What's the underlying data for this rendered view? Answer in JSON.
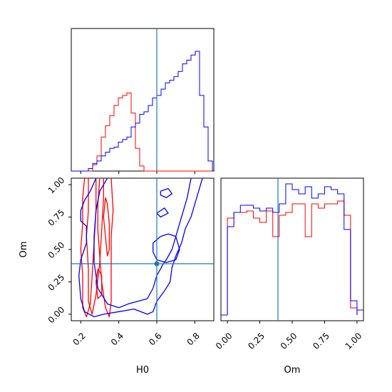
{
  "chart_data": [
    {
      "type": "histogram",
      "panel": "H0 marginal",
      "xlim": [
        0.15,
        0.9
      ],
      "truth": 0.6,
      "truth_color": "#1f77b4",
      "bins": [
        0.15,
        0.1725,
        0.195,
        0.2175,
        0.24,
        0.2625,
        0.285,
        0.3075,
        0.33,
        0.3525,
        0.375,
        0.3975,
        0.42,
        0.4425,
        0.465,
        0.4875,
        0.51,
        0.5325,
        0.555,
        0.5775,
        0.6,
        0.6225,
        0.645,
        0.6675,
        0.69,
        0.7125,
        0.735,
        0.7575,
        0.78,
        0.8025,
        0.825,
        0.8475,
        0.87,
        0.8925
      ],
      "series": [
        {
          "color": "#ff0000",
          "values": [
            0,
            0,
            0,
            0,
            0,
            0.05,
            0.12,
            0.27,
            0.36,
            0.44,
            0.52,
            0.58,
            0.6,
            0.62,
            0.46,
            0.18,
            0.04,
            0,
            0,
            0,
            0,
            0,
            0,
            0,
            0,
            0,
            0,
            0,
            0,
            0,
            0,
            0,
            0
          ]
        },
        {
          "color": "#0000ff",
          "values": [
            0,
            0,
            0,
            0,
            0.02,
            0.06,
            0.08,
            0.12,
            0.15,
            0.18,
            0.19,
            0.23,
            0.25,
            0.27,
            0.35,
            0.38,
            0.45,
            0.47,
            0.52,
            0.58,
            0.6,
            0.65,
            0.7,
            0.72,
            0.75,
            0.79,
            0.85,
            0.88,
            0.92,
            0.95,
            0.6,
            0.35,
            0.08
          ]
        }
      ]
    },
    {
      "type": "contour",
      "panel": "H0 vs Om",
      "xlabel": "H0",
      "ylabel": "Om",
      "xlim": [
        0.15,
        0.9
      ],
      "ylim": [
        -0.05,
        1.05
      ],
      "x_ticks": [
        "0.2",
        "0.4",
        "0.6",
        "0.8"
      ],
      "y_ticks": [
        "0.00",
        "0.25",
        "0.50",
        "0.75",
        "1.00"
      ],
      "truth": [
        0.6,
        0.39
      ],
      "truth_color": "#1f77b4",
      "series": [
        {
          "color": "#ff0000",
          "contours": [
            [
              [
                0.22,
                1.05
              ],
              [
                0.21,
                0.9
              ],
              [
                0.21,
                0.7
              ],
              [
                0.2,
                0.5
              ],
              [
                0.21,
                0.3
              ],
              [
                0.21,
                0.05
              ],
              [
                0.23,
                -0.02
              ],
              [
                0.25,
                0.08
              ],
              [
                0.26,
                0.3
              ],
              [
                0.27,
                0.55
              ],
              [
                0.28,
                0.8
              ],
              [
                0.28,
                1.05
              ]
            ],
            [
              [
                0.24,
                1.05
              ],
              [
                0.24,
                0.8
              ],
              [
                0.23,
                0.6
              ],
              [
                0.24,
                0.35
              ],
              [
                0.24,
                0.1
              ],
              [
                0.26,
                0.0
              ],
              [
                0.28,
                0.15
              ],
              [
                0.3,
                0.4
              ],
              [
                0.31,
                0.65
              ],
              [
                0.32,
                0.9
              ],
              [
                0.32,
                1.05
              ]
            ],
            [
              [
                0.3,
                1.05
              ],
              [
                0.29,
                0.85
              ],
              [
                0.29,
                0.65
              ],
              [
                0.3,
                0.45
              ],
              [
                0.31,
                0.25
              ],
              [
                0.33,
                0.05
              ],
              [
                0.35,
                -0.02
              ],
              [
                0.36,
                0.1
              ],
              [
                0.36,
                0.35
              ],
              [
                0.36,
                0.6
              ],
              [
                0.37,
                0.8
              ],
              [
                0.36,
                1.05
              ]
            ],
            [
              [
                0.33,
                0.9
              ],
              [
                0.32,
                0.75
              ],
              [
                0.33,
                0.6
              ],
              [
                0.34,
                0.45
              ],
              [
                0.35,
                0.5
              ],
              [
                0.35,
                0.7
              ],
              [
                0.34,
                0.85
              ],
              [
                0.33,
                0.9
              ]
            ],
            [
              [
                0.29,
                0.35
              ],
              [
                0.28,
                0.25
              ],
              [
                0.29,
                0.12
              ],
              [
                0.31,
                0.15
              ],
              [
                0.31,
                0.3
              ],
              [
                0.29,
                0.35
              ]
            ]
          ]
        },
        {
          "color": "#0000ff",
          "contours": [
            [
              [
                0.28,
                1.05
              ],
              [
                0.25,
                0.95
              ],
              [
                0.22,
                0.88
              ],
              [
                0.2,
                0.8
              ],
              [
                0.2,
                0.72
              ],
              [
                0.23,
                0.68
              ],
              [
                0.23,
                0.55
              ],
              [
                0.2,
                0.42
              ],
              [
                0.19,
                0.3
              ],
              [
                0.2,
                0.12
              ],
              [
                0.22,
                0.02
              ],
              [
                0.27,
                -0.02
              ],
              [
                0.32,
                0.0
              ],
              [
                0.4,
                0.02
              ],
              [
                0.48,
                0.04
              ],
              [
                0.55,
                0.0
              ],
              [
                0.58,
                0.02
              ],
              [
                0.6,
                0.1
              ],
              [
                0.64,
                0.18
              ],
              [
                0.67,
                0.25
              ],
              [
                0.68,
                0.36
              ],
              [
                0.7,
                0.45
              ],
              [
                0.73,
                0.55
              ],
              [
                0.75,
                0.66
              ],
              [
                0.78,
                0.75
              ],
              [
                0.8,
                0.85
              ],
              [
                0.82,
                0.95
              ],
              [
                0.84,
                1.05
              ]
            ],
            [
              [
                0.34,
                1.05
              ],
              [
                0.3,
                0.95
              ],
              [
                0.28,
                0.8
              ],
              [
                0.27,
                0.6
              ],
              [
                0.27,
                0.4
              ],
              [
                0.29,
                0.2
              ],
              [
                0.34,
                0.08
              ],
              [
                0.4,
                0.05
              ],
              [
                0.45,
                0.08
              ],
              [
                0.5,
                0.1
              ],
              [
                0.55,
                0.12
              ],
              [
                0.58,
                0.2
              ],
              [
                0.6,
                0.3
              ],
              [
                0.62,
                0.35
              ],
              [
                0.63,
                0.38
              ],
              [
                0.65,
                0.42
              ],
              [
                0.68,
                0.5
              ],
              [
                0.7,
                0.6
              ],
              [
                0.72,
                0.7
              ],
              [
                0.74,
                0.8
              ],
              [
                0.76,
                0.9
              ],
              [
                0.78,
                1.05
              ]
            ],
            [
              [
                0.58,
                0.55
              ],
              [
                0.62,
                0.6
              ],
              [
                0.66,
                0.62
              ],
              [
                0.7,
                0.6
              ],
              [
                0.72,
                0.5
              ],
              [
                0.7,
                0.42
              ],
              [
                0.65,
                0.4
              ],
              [
                0.6,
                0.42
              ],
              [
                0.58,
                0.48
              ],
              [
                0.58,
                0.55
              ]
            ],
            [
              [
                0.62,
                0.95
              ],
              [
                0.66,
                0.97
              ],
              [
                0.68,
                0.93
              ],
              [
                0.65,
                0.9
              ],
              [
                0.62,
                0.92
              ],
              [
                0.62,
                0.95
              ]
            ],
            [
              [
                0.6,
                0.78
              ],
              [
                0.64,
                0.82
              ],
              [
                0.66,
                0.78
              ],
              [
                0.62,
                0.75
              ],
              [
                0.6,
                0.78
              ]
            ]
          ]
        }
      ]
    },
    {
      "type": "histogram",
      "panel": "Om marginal",
      "xlabel": "Om",
      "xlim": [
        -0.05,
        1.05
      ],
      "x_ticks": [
        "0.00",
        "0.25",
        "0.50",
        "0.75",
        "1.00"
      ],
      "truth": 0.39,
      "truth_color": "#1f77b4",
      "bins": [
        0.0,
        0.05,
        0.1,
        0.15,
        0.2,
        0.25,
        0.3,
        0.35,
        0.4,
        0.45,
        0.5,
        0.55,
        0.6,
        0.65,
        0.7,
        0.75,
        0.8,
        0.85,
        0.9,
        0.95,
        1.0
      ],
      "series": [
        {
          "color": "#ff0000",
          "values": [
            0.68,
            0.72,
            0.72,
            0.73,
            0.68,
            0.65,
            0.73,
            0.55,
            0.7,
            0.72,
            0.78,
            0.78,
            0.55,
            0.78,
            0.75,
            0.78,
            0.78,
            0.8,
            0.7,
            0.05
          ]
        },
        {
          "color": "#0000ff",
          "values": [
            0.62,
            0.72,
            0.77,
            0.77,
            0.75,
            0.73,
            0.75,
            0.72,
            0.78,
            0.92,
            0.88,
            0.85,
            0.9,
            0.82,
            0.85,
            0.9,
            0.88,
            0.85,
            0.6,
            0.1
          ]
        }
      ]
    }
  ]
}
